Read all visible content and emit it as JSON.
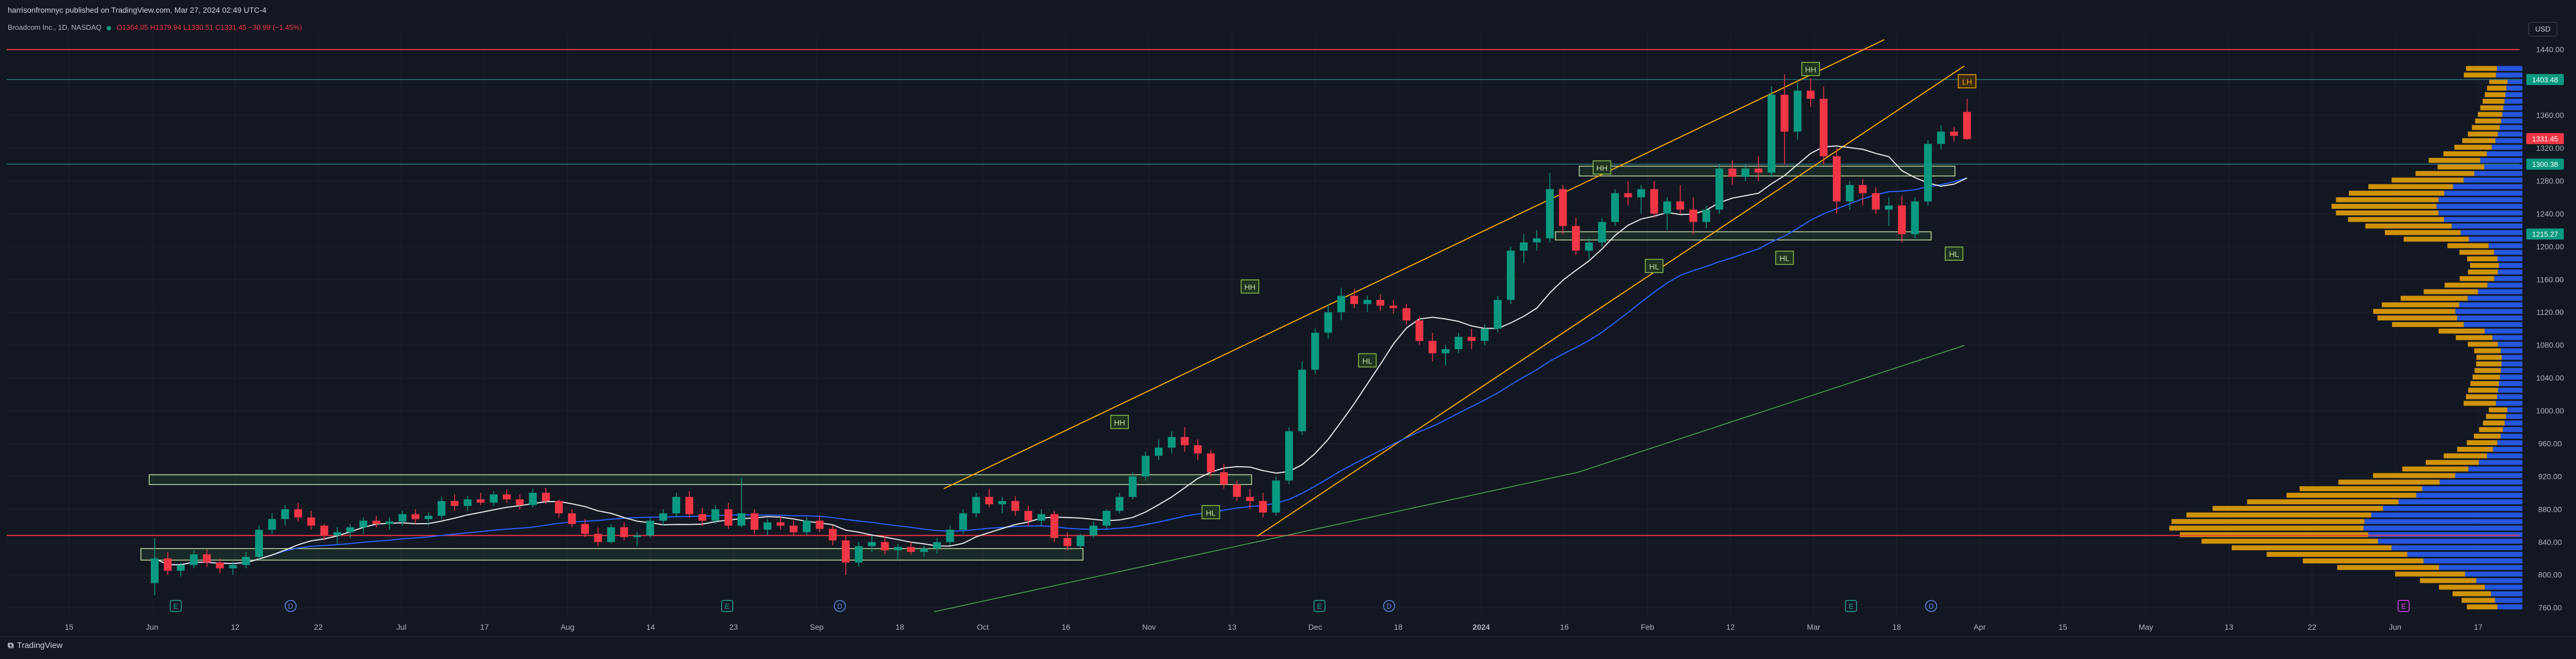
{
  "header": {
    "published": "harrisonfromnyc published on TradingView.com, Mar 27, 2024 02:49 UTC-4",
    "symbol": "Broadcom Inc., 1D, NASDAQ",
    "ohlc": "O1364.05 H1379.94 L1330.51 C1331.45 −30.99 (−1.45%)",
    "currency": "USD"
  },
  "footer": {
    "brand": "TradingView"
  },
  "chart_data": {
    "type": "candlestick",
    "title": "Broadcom Inc., 1D, NASDAQ",
    "ylim": [
      750,
      1460
    ],
    "y_ticks": [
      760,
      800,
      840,
      880,
      920,
      960,
      1000,
      1040,
      1080,
      1120,
      1160,
      1200,
      1240,
      1280,
      1320,
      1360,
      1400,
      1440
    ],
    "x_ticks": [
      "15",
      "Jun",
      "12",
      "22",
      "Jul",
      "17",
      "Aug",
      "14",
      "23",
      "Sep",
      "18",
      "Oct",
      "16",
      "Nov",
      "13",
      "Dec",
      "18",
      "2024",
      "16",
      "Feb",
      "12",
      "Mar",
      "18",
      "Apr",
      "15",
      "May",
      "13",
      "22",
      "Jun",
      "17"
    ],
    "series": [
      {
        "name": "price",
        "color_up": "#089981",
        "color_down": "#f23645",
        "candles": [
          [
            790,
            845,
            775,
            820
          ],
          [
            820,
            828,
            800,
            805
          ],
          [
            805,
            815,
            798,
            812
          ],
          [
            812,
            830,
            808,
            825
          ],
          [
            825,
            832,
            810,
            815
          ],
          [
            815,
            820,
            802,
            808
          ],
          [
            808,
            816,
            800,
            812
          ],
          [
            812,
            828,
            808,
            822
          ],
          [
            822,
            860,
            818,
            855
          ],
          [
            855,
            875,
            850,
            868
          ],
          [
            868,
            885,
            860,
            880
          ],
          [
            880,
            888,
            865,
            870
          ],
          [
            870,
            878,
            855,
            860
          ],
          [
            860,
            862,
            842,
            848
          ],
          [
            848,
            858,
            838,
            852
          ],
          [
            852,
            862,
            845,
            858
          ],
          [
            858,
            870,
            850,
            866
          ],
          [
            866,
            872,
            858,
            862
          ],
          [
            862,
            870,
            855,
            865
          ],
          [
            865,
            878,
            860,
            874
          ],
          [
            874,
            880,
            862,
            868
          ],
          [
            868,
            876,
            860,
            872
          ],
          [
            872,
            895,
            868,
            890
          ],
          [
            890,
            898,
            878,
            884
          ],
          [
            884,
            896,
            878,
            892
          ],
          [
            892,
            900,
            885,
            888
          ],
          [
            888,
            902,
            884,
            898
          ],
          [
            898,
            904,
            888,
            892
          ],
          [
            892,
            898,
            880,
            885
          ],
          [
            885,
            905,
            882,
            900
          ],
          [
            900,
            906,
            886,
            890
          ],
          [
            890,
            892,
            870,
            875
          ],
          [
            875,
            880,
            858,
            862
          ],
          [
            862,
            868,
            846,
            850
          ],
          [
            850,
            858,
            835,
            840
          ],
          [
            840,
            862,
            838,
            858
          ],
          [
            858,
            864,
            842,
            846
          ],
          [
            846,
            852,
            835,
            848
          ],
          [
            848,
            870,
            845,
            866
          ],
          [
            866,
            880,
            860,
            875
          ],
          [
            875,
            900,
            870,
            895
          ],
          [
            895,
            902,
            870,
            874
          ],
          [
            874,
            882,
            860,
            866
          ],
          [
            866,
            885,
            862,
            880
          ],
          [
            880,
            888,
            856,
            860
          ],
          [
            860,
            918,
            858,
            875
          ],
          [
            875,
            880,
            850,
            855
          ],
          [
            855,
            868,
            848,
            864
          ],
          [
            864,
            872,
            855,
            860
          ],
          [
            860,
            866,
            848,
            852
          ],
          [
            852,
            870,
            848,
            866
          ],
          [
            866,
            872,
            852,
            856
          ],
          [
            856,
            860,
            836,
            842
          ],
          [
            842,
            848,
            800,
            815
          ],
          [
            815,
            840,
            810,
            835
          ],
          [
            835,
            848,
            828,
            840
          ],
          [
            840,
            848,
            825,
            830
          ],
          [
            830,
            838,
            818,
            834
          ],
          [
            834,
            840,
            825,
            828
          ],
          [
            828,
            836,
            822,
            832
          ],
          [
            832,
            845,
            826,
            840
          ],
          [
            840,
            860,
            836,
            855
          ],
          [
            855,
            880,
            850,
            875
          ],
          [
            875,
            900,
            870,
            895
          ],
          [
            895,
            905,
            882,
            886
          ],
          [
            886,
            895,
            875,
            890
          ],
          [
            890,
            896,
            872,
            878
          ],
          [
            878,
            884,
            860,
            866
          ],
          [
            866,
            880,
            860,
            874
          ],
          [
            874,
            878,
            840,
            845
          ],
          [
            845,
            852,
            830,
            835
          ],
          [
            835,
            850,
            832,
            848
          ],
          [
            848,
            865,
            845,
            860
          ],
          [
            860,
            880,
            856,
            878
          ],
          [
            878,
            900,
            875,
            895
          ],
          [
            895,
            925,
            892,
            920
          ],
          [
            920,
            950,
            915,
            945
          ],
          [
            945,
            965,
            940,
            955
          ],
          [
            955,
            975,
            948,
            968
          ],
          [
            968,
            980,
            950,
            958
          ],
          [
            958,
            965,
            940,
            948
          ],
          [
            948,
            952,
            920,
            925
          ],
          [
            925,
            935,
            905,
            910
          ],
          [
            910,
            915,
            890,
            895
          ],
          [
            895,
            905,
            880,
            890
          ],
          [
            890,
            900,
            870,
            876
          ],
          [
            876,
            920,
            872,
            915
          ],
          [
            915,
            980,
            910,
            975
          ],
          [
            975,
            1060,
            970,
            1050
          ],
          [
            1050,
            1100,
            1045,
            1095
          ],
          [
            1095,
            1130,
            1088,
            1120
          ],
          [
            1120,
            1150,
            1110,
            1140
          ],
          [
            1140,
            1148,
            1125,
            1130
          ],
          [
            1130,
            1140,
            1120,
            1135
          ],
          [
            1135,
            1142,
            1122,
            1128
          ],
          [
            1128,
            1135,
            1118,
            1125
          ],
          [
            1125,
            1130,
            1105,
            1110
          ],
          [
            1110,
            1115,
            1080,
            1085
          ],
          [
            1085,
            1095,
            1060,
            1070
          ],
          [
            1070,
            1080,
            1055,
            1075
          ],
          [
            1075,
            1095,
            1070,
            1090
          ],
          [
            1090,
            1100,
            1075,
            1085
          ],
          [
            1085,
            1105,
            1080,
            1100
          ],
          [
            1100,
            1140,
            1095,
            1135
          ],
          [
            1135,
            1200,
            1130,
            1195
          ],
          [
            1195,
            1215,
            1180,
            1205
          ],
          [
            1205,
            1220,
            1195,
            1210
          ],
          [
            1210,
            1290,
            1205,
            1270
          ],
          [
            1270,
            1275,
            1215,
            1225
          ],
          [
            1225,
            1235,
            1190,
            1195
          ],
          [
            1195,
            1210,
            1185,
            1205
          ],
          [
            1205,
            1235,
            1200,
            1230
          ],
          [
            1230,
            1270,
            1225,
            1265
          ],
          [
            1265,
            1280,
            1250,
            1260
          ],
          [
            1260,
            1275,
            1240,
            1270
          ],
          [
            1270,
            1280,
            1235,
            1240
          ],
          [
            1240,
            1260,
            1220,
            1255
          ],
          [
            1255,
            1275,
            1240,
            1245
          ],
          [
            1245,
            1260,
            1215,
            1230
          ],
          [
            1230,
            1250,
            1222,
            1245
          ],
          [
            1245,
            1300,
            1240,
            1295
          ],
          [
            1295,
            1305,
            1275,
            1285
          ],
          [
            1285,
            1300,
            1280,
            1295
          ],
          [
            1295,
            1310,
            1280,
            1290
          ],
          [
            1290,
            1395,
            1285,
            1385
          ],
          [
            1385,
            1410,
            1300,
            1340
          ],
          [
            1340,
            1400,
            1330,
            1390
          ],
          [
            1390,
            1405,
            1370,
            1380
          ],
          [
            1380,
            1395,
            1300,
            1310
          ],
          [
            1310,
            1320,
            1240,
            1255
          ],
          [
            1255,
            1280,
            1245,
            1275
          ],
          [
            1275,
            1282,
            1250,
            1265
          ],
          [
            1265,
            1272,
            1240,
            1245
          ],
          [
            1245,
            1260,
            1225,
            1250
          ],
          [
            1250,
            1262,
            1205,
            1215
          ],
          [
            1215,
            1260,
            1210,
            1255
          ],
          [
            1255,
            1330,
            1250,
            1325
          ],
          [
            1325,
            1348,
            1318,
            1340
          ],
          [
            1340,
            1346,
            1328,
            1335
          ],
          [
            1364,
            1380,
            1330,
            1331
          ]
        ]
      },
      {
        "name": "ma-fast",
        "color": "#e8e8e8"
      },
      {
        "name": "ma-mid",
        "color": "#2962ff"
      },
      {
        "name": "ma-slow",
        "color": "#4caf50"
      }
    ],
    "annotations": [
      {
        "text": "HH",
        "at": 84,
        "price": 1150
      },
      {
        "text": "HH",
        "at": 74,
        "price": 985
      },
      {
        "text": "HH",
        "at": 111,
        "price": 1295
      },
      {
        "text": "HH",
        "at": 127,
        "price": 1415
      },
      {
        "text": "LH",
        "at": 139,
        "price": 1400
      },
      {
        "text": "HL",
        "at": 81,
        "price": 875
      },
      {
        "text": "HL",
        "at": 93,
        "price": 1060
      },
      {
        "text": "HL",
        "at": 115,
        "price": 1175
      },
      {
        "text": "HL",
        "at": 125,
        "price": 1185
      },
      {
        "text": "HL",
        "at": 138,
        "price": 1190
      }
    ],
    "price_labels": [
      {
        "text": "1403.48",
        "price": 1403.48,
        "color": "#089981"
      },
      {
        "text": "1331.45",
        "price": 1331.45,
        "color": "#f23645"
      },
      {
        "text": "1300.38",
        "price": 1300.38,
        "color": "#089981"
      },
      {
        "text": "1215.27",
        "price": 1215.27,
        "color": "#089981"
      }
    ],
    "horizontal_levels": [
      {
        "price": 1440,
        "color": "#f23645"
      },
      {
        "price": 1403.48,
        "color": "#2a7d7a"
      },
      {
        "price": 1300.38,
        "color": "#2a7d7a"
      },
      {
        "price": 848,
        "color": "#f23645"
      }
    ],
    "volume_profile": {
      "up_color": "#f2a900",
      "down_color": "#2962ff"
    },
    "event_markers": [
      "E",
      "D",
      "E",
      "D",
      "E",
      "D",
      "E",
      "D",
      "E"
    ]
  }
}
